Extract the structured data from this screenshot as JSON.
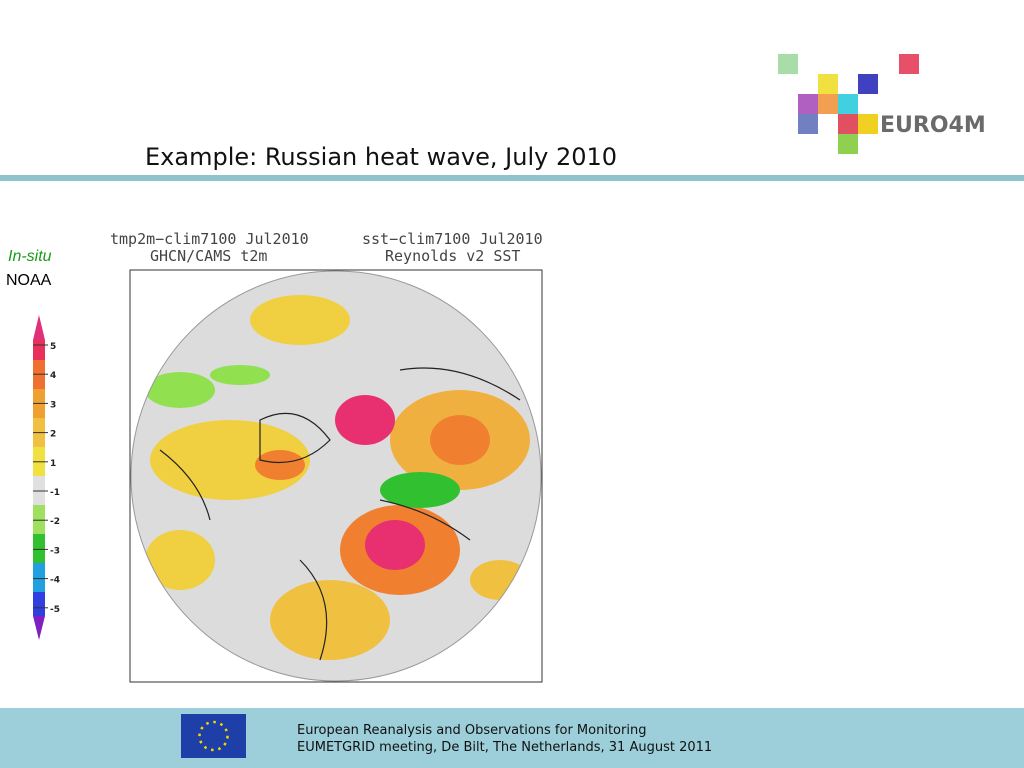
{
  "header": {
    "title": "Example: Russian heat wave, July 2010",
    "logo_text": "EURO4M"
  },
  "side": {
    "label_1": "In-situ",
    "label_2": "NOAA"
  },
  "colorbar": {
    "labels": [
      5,
      4,
      3,
      2,
      1,
      -1,
      -2,
      -3,
      -4,
      -5
    ]
  },
  "maps": {
    "left_line_1": "tmp2m−clim7100 Jul2010",
    "left_line_2": "GHCN/CAMS t2m",
    "right_line_1": "sst−clim7100 Jul2010",
    "right_line_2": "Reynolds v2 SST"
  },
  "footer": {
    "line_1": "European Reanalysis and Observations for Monitoring",
    "line_2": "EUMETGRID meeting, De Bilt, The Netherlands, 31 August 2011"
  }
}
